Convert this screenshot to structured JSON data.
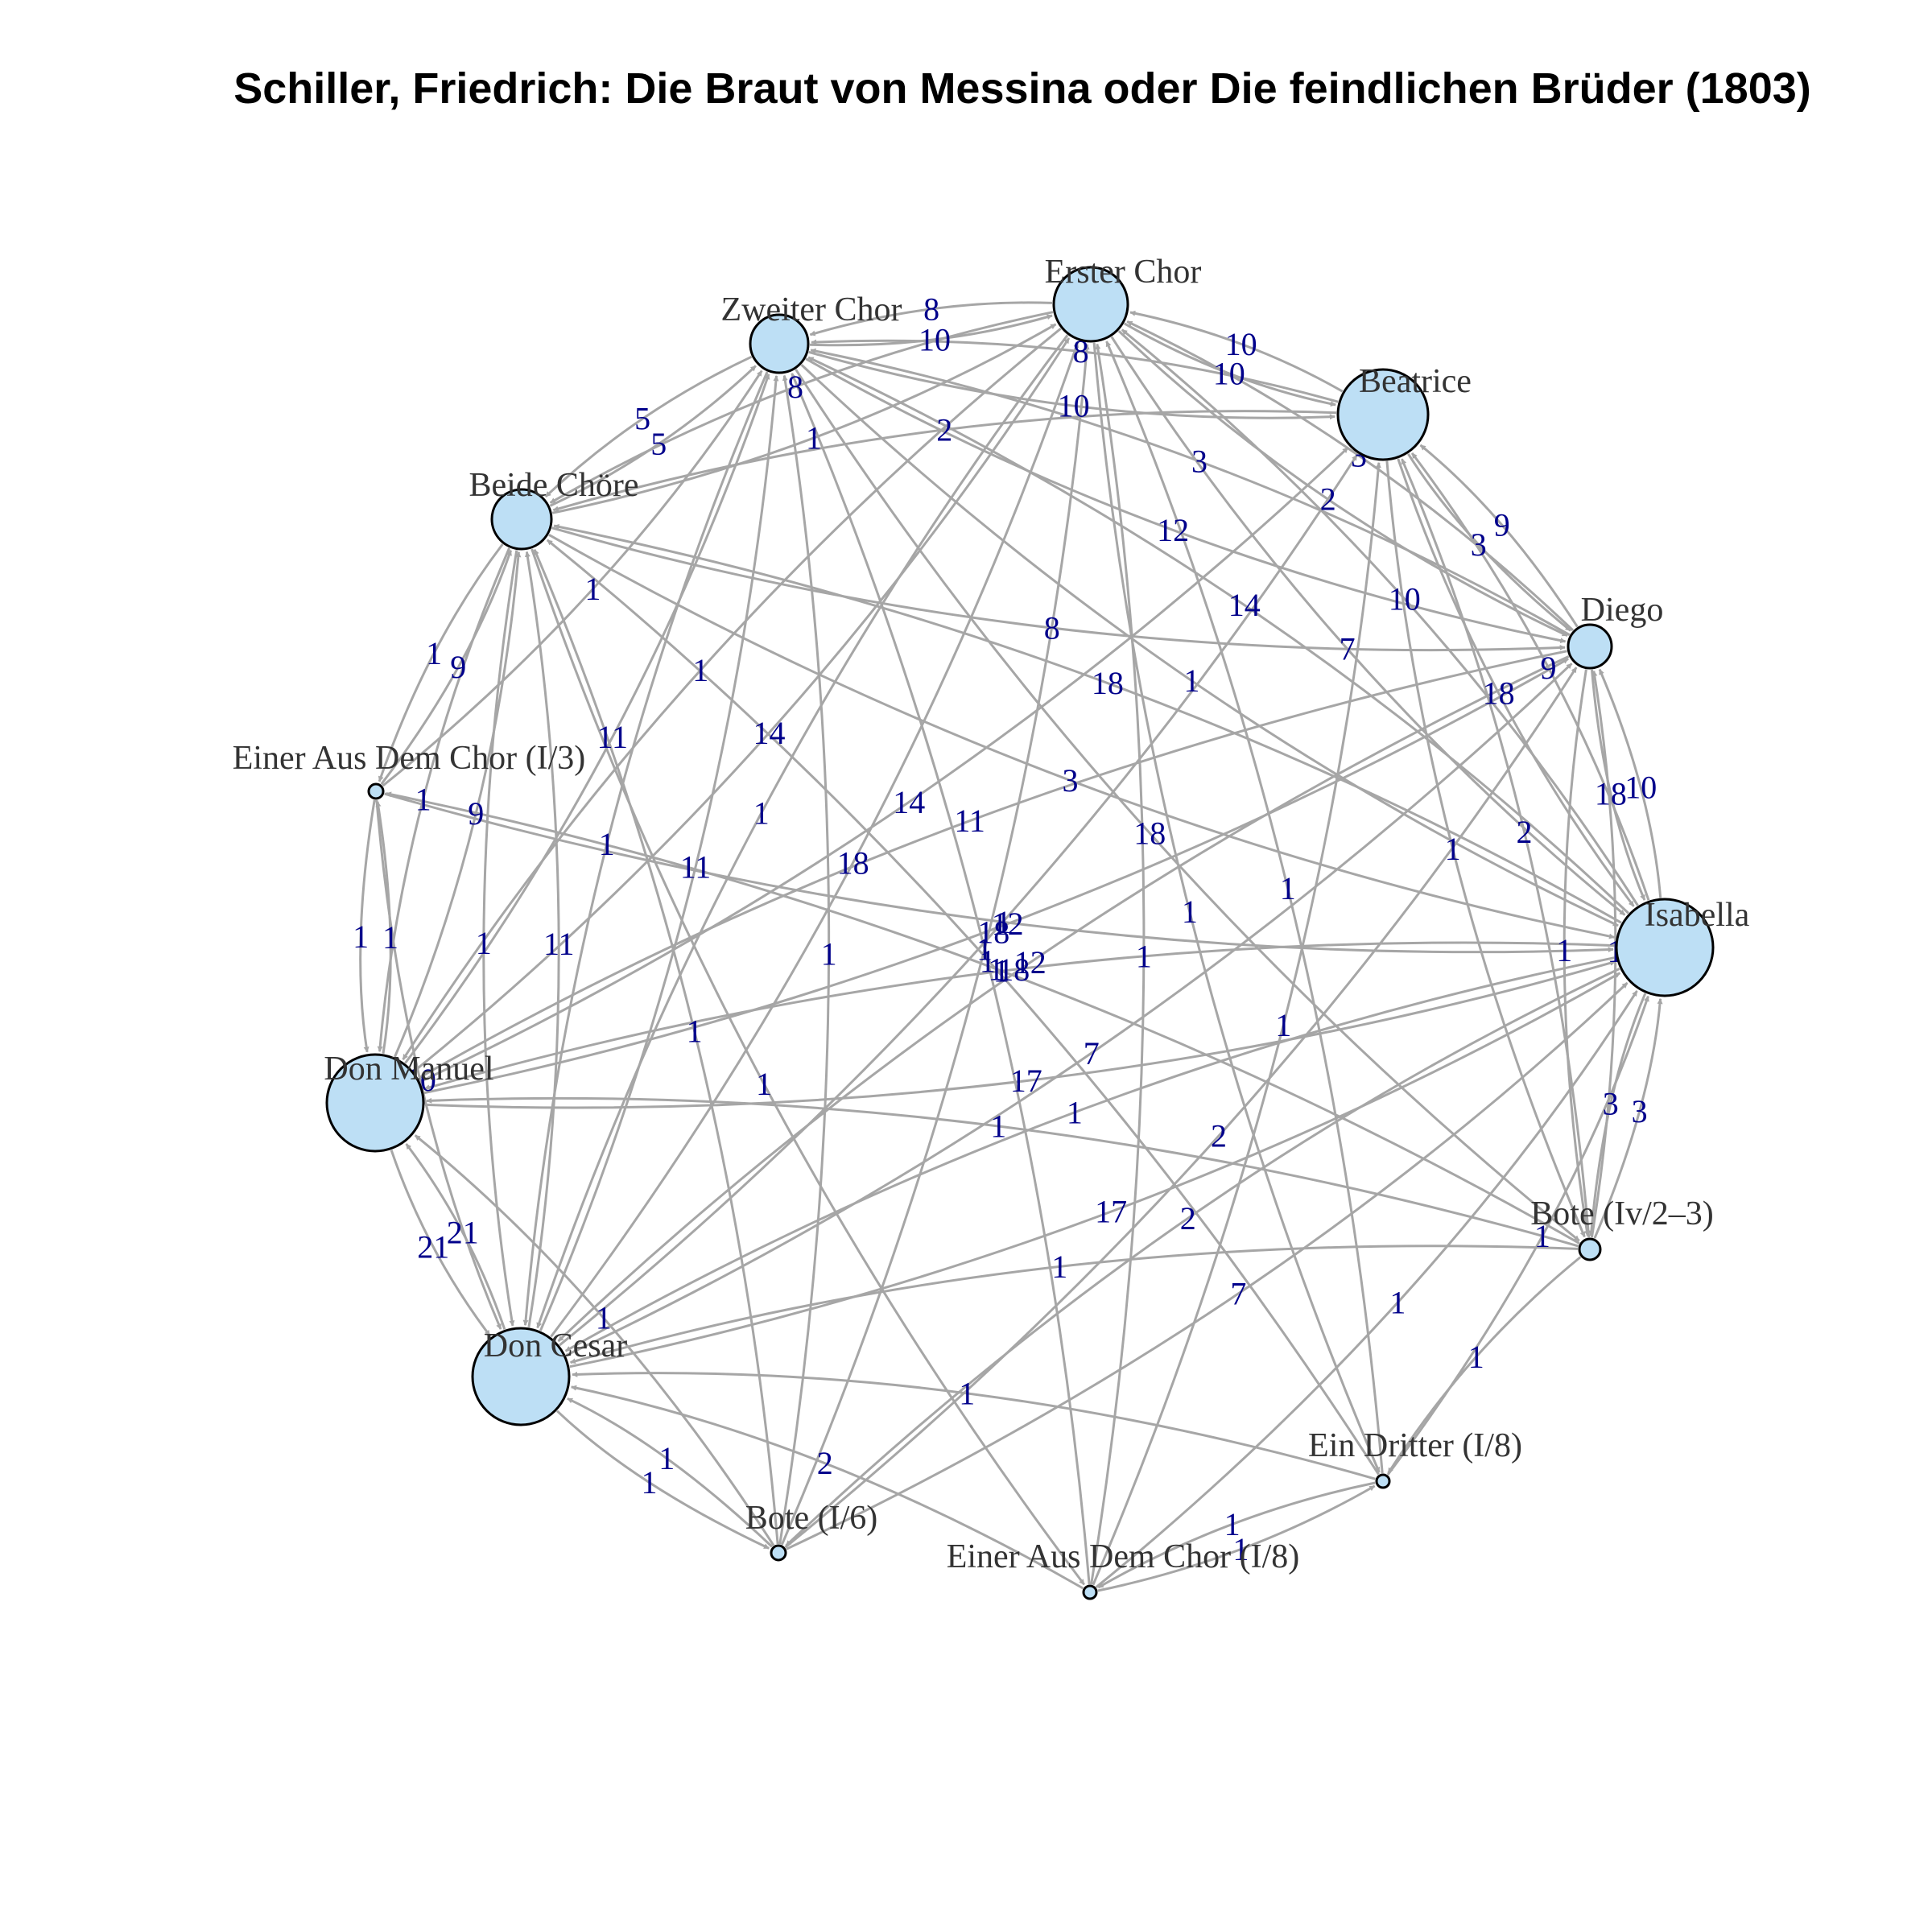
{
  "title": "Schiller, Friedrich: Die Braut von Messina oder Die feindlichen Brüder (1803)",
  "colors": {
    "node_fill": "#bddff5",
    "edge": "#a6a6a6",
    "edge_label": "#00008b",
    "node_label": "#333333"
  },
  "nodes": [
    {
      "id": "erster_chor",
      "label": "Erster Chor"
    },
    {
      "id": "zweiter_chor",
      "label": "Zweiter Chor"
    },
    {
      "id": "beatrice",
      "label": "Beatrice"
    },
    {
      "id": "beide_choere",
      "label": "Beide Chöre"
    },
    {
      "id": "diego",
      "label": "Diego"
    },
    {
      "id": "einer_chor_i3",
      "label": "Einer Aus Dem Chor (I/3)"
    },
    {
      "id": "isabella",
      "label": "Isabella"
    },
    {
      "id": "don_manuel",
      "label": "Don Manuel"
    },
    {
      "id": "bote_iv",
      "label": "Bote (Iv/2–3)"
    },
    {
      "id": "don_cesar",
      "label": "Don Cesar"
    },
    {
      "id": "ein_dritter",
      "label": "Ein Dritter (I/8)"
    },
    {
      "id": "bote_i6",
      "label": "Bote (I/6)"
    },
    {
      "id": "einer_chor_i8",
      "label": "Einer Aus Dem Chor (I/8)"
    }
  ],
  "edges": [
    {
      "source": "erster_chor",
      "target": "zweiter_chor",
      "weight": "8"
    },
    {
      "source": "zweiter_chor",
      "target": "erster_chor",
      "weight": "10"
    },
    {
      "source": "erster_chor",
      "target": "beatrice",
      "weight": "10"
    },
    {
      "source": "beatrice",
      "target": "erster_chor",
      "weight": "10"
    },
    {
      "source": "zweiter_chor",
      "target": "beatrice",
      "weight": "10"
    },
    {
      "source": "beatrice",
      "target": "zweiter_chor",
      "weight": "8"
    },
    {
      "source": "erster_chor",
      "target": "beide_choere",
      "weight": "8"
    },
    {
      "source": "beide_choere",
      "target": "zweiter_chor",
      "weight": "5"
    },
    {
      "source": "zweiter_chor",
      "target": "beide_choere",
      "weight": "5"
    },
    {
      "source": "beide_choere",
      "target": "erster_chor",
      "weight": "1"
    },
    {
      "source": "einer_chor_i3",
      "target": "zweiter_chor",
      "weight": "1"
    },
    {
      "source": "beatrice",
      "target": "beide_choere",
      "weight": "2"
    },
    {
      "source": "beatrice",
      "target": "diego",
      "weight": "3"
    },
    {
      "source": "diego",
      "target": "beatrice",
      "weight": "9"
    },
    {
      "source": "diego",
      "target": "erster_chor",
      "weight": "3"
    },
    {
      "source": "diego",
      "target": "zweiter_chor",
      "weight": "3"
    },
    {
      "source": "isabella",
      "target": "beatrice",
      "weight": "9"
    },
    {
      "source": "beatrice",
      "target": "isabella",
      "weight": "18"
    },
    {
      "source": "isabella",
      "target": "zweiter_chor",
      "weight": "14"
    },
    {
      "source": "isabella",
      "target": "erster_chor",
      "weight": "10"
    },
    {
      "source": "isabella",
      "target": "beide_choere",
      "weight": "18"
    },
    {
      "source": "don_manuel",
      "target": "zweiter_chor",
      "weight": "11"
    },
    {
      "source": "don_manuel",
      "target": "erster_chor",
      "weight": "14"
    },
    {
      "source": "don_manuel",
      "target": "beide_choere",
      "weight": "9"
    },
    {
      "source": "don_manuel",
      "target": "beatrice",
      "weight": "14"
    },
    {
      "source": "don_cesar",
      "target": "zweiter_chor",
      "weight": "11"
    },
    {
      "source": "don_cesar",
      "target": "erster_chor",
      "weight": "18"
    },
    {
      "source": "don_cesar",
      "target": "beide_choere",
      "weight": "11"
    },
    {
      "source": "don_cesar",
      "target": "beatrice",
      "weight": "18"
    },
    {
      "source": "beide_choere",
      "target": "einer_chor_i3",
      "weight": "1"
    },
    {
      "source": "einer_chor_i3",
      "target": "beide_choere",
      "weight": "9"
    },
    {
      "source": "beide_choere",
      "target": "don_manuel",
      "weight": "1"
    },
    {
      "source": "einer_chor_i3",
      "target": "don_manuel",
      "weight": "1"
    },
    {
      "source": "don_manuel",
      "target": "einer_chor_i3",
      "weight": "1"
    },
    {
      "source": "einer_chor_i3",
      "target": "don_cesar",
      "weight": "10"
    },
    {
      "source": "bote_iv",
      "target": "einer_chor_i3",
      "weight": "1"
    },
    {
      "source": "diego",
      "target": "isabella",
      "weight": "18"
    },
    {
      "source": "isabella",
      "target": "diego",
      "weight": "10"
    },
    {
      "source": "beatrice",
      "target": "bote_iv",
      "weight": "1"
    },
    {
      "source": "bote_iv",
      "target": "isabella",
      "weight": "3"
    },
    {
      "source": "isabella",
      "target": "bote_iv",
      "weight": "3"
    },
    {
      "source": "bote_iv",
      "target": "beatrice",
      "weight": "2"
    },
    {
      "source": "don_manuel",
      "target": "isabella",
      "weight": "17"
    },
    {
      "source": "isabella",
      "target": "don_manuel",
      "weight": "18"
    },
    {
      "source": "don_cesar",
      "target": "isabella",
      "weight": "17"
    },
    {
      "source": "isabella",
      "target": "don_cesar",
      "weight": "1"
    },
    {
      "source": "don_cesar",
      "target": "don_manuel",
      "weight": "21"
    },
    {
      "source": "don_manuel",
      "target": "don_cesar",
      "weight": "21"
    },
    {
      "source": "don_cesar",
      "target": "diego",
      "weight": "7"
    },
    {
      "source": "diego",
      "target": "don_cesar",
      "weight": "12"
    },
    {
      "source": "don_manuel",
      "target": "diego",
      "weight": "12"
    },
    {
      "source": "bote_iv",
      "target": "don_manuel",
      "weight": "1"
    },
    {
      "source": "bote_iv",
      "target": "don_cesar",
      "weight": "1"
    },
    {
      "source": "don_cesar",
      "target": "bote_i6",
      "weight": "1"
    },
    {
      "source": "bote_i6",
      "target": "don_cesar",
      "weight": "1"
    },
    {
      "source": "bote_i6",
      "target": "erster_chor",
      "weight": "1"
    },
    {
      "source": "bote_i6",
      "target": "beide_choere",
      "weight": "1"
    },
    {
      "source": "bote_i6",
      "target": "diego",
      "weight": "2"
    },
    {
      "source": "einer_chor_i8",
      "target": "ein_dritter",
      "weight": "1"
    },
    {
      "source": "ein_dritter",
      "target": "einer_chor_i8",
      "weight": "1"
    },
    {
      "source": "einer_chor_i8",
      "target": "isabella",
      "weight": "1"
    },
    {
      "source": "ein_dritter",
      "target": "isabella",
      "weight": "1"
    },
    {
      "source": "bote_iv",
      "target": "ein_dritter",
      "weight": "1"
    },
    {
      "source": "einer_chor_i8",
      "target": "zweiter_chor",
      "weight": "1"
    },
    {
      "source": "ein_dritter",
      "target": "beide_choere",
      "weight": "1"
    },
    {
      "source": "einer_chor_i8",
      "target": "beatrice",
      "weight": "1"
    },
    {
      "source": "ein_dritter",
      "target": "erster_chor",
      "weight": "1"
    },
    {
      "source": "einer_chor_i8",
      "target": "don_cesar",
      "weight": "2"
    },
    {
      "source": "ein_dritter",
      "target": "don_cesar",
      "weight": "1"
    },
    {
      "source": "bote_i6",
      "target": "isabella",
      "weight": "7"
    },
    {
      "source": "bote_i6",
      "target": "zweiter_chor",
      "weight": "1"
    },
    {
      "source": "diego",
      "target": "don_manuel",
      "weight": "11"
    },
    {
      "source": "erster_chor",
      "target": "isabella",
      "weight": "7"
    },
    {
      "source": "zweiter_chor",
      "target": "isabella",
      "weight": "1"
    },
    {
      "source": "erster_chor",
      "target": "don_manuel",
      "weight": "1"
    },
    {
      "source": "einer_chor_i3",
      "target": "isabella",
      "weight": "1"
    },
    {
      "source": "bote_i6",
      "target": "don_manuel",
      "weight": "1"
    },
    {
      "source": "isabella",
      "target": "bote_i6",
      "weight": "2"
    },
    {
      "source": "diego",
      "target": "bote_iv",
      "weight": "1"
    },
    {
      "source": "einer_chor_i8",
      "target": "erster_chor",
      "weight": "1"
    },
    {
      "source": "bote_iv",
      "target": "diego",
      "weight": "1"
    },
    {
      "source": "beide_choere",
      "target": "isabella",
      "weight": "3"
    },
    {
      "source": "beide_choere",
      "target": "diego",
      "weight": "8"
    },
    {
      "source": "erster_chor",
      "target": "don_cesar",
      "weight": "1"
    },
    {
      "source": "zweiter_chor",
      "target": "don_cesar",
      "weight": "1"
    },
    {
      "source": "beide_choere",
      "target": "don_cesar",
      "weight": "1"
    },
    {
      "source": "zweiter_chor",
      "target": "bote_iv",
      "weight": "18"
    },
    {
      "source": "erster_chor",
      "target": "ein_dritter",
      "weight": "1"
    },
    {
      "source": "beide_choere",
      "target": "einer_chor_i8",
      "weight": "1"
    },
    {
      "source": "zweiter_chor",
      "target": "diego",
      "weight": "12"
    },
    {
      "source": "erster_chor",
      "target": "diego",
      "weight": "2"
    }
  ]
}
